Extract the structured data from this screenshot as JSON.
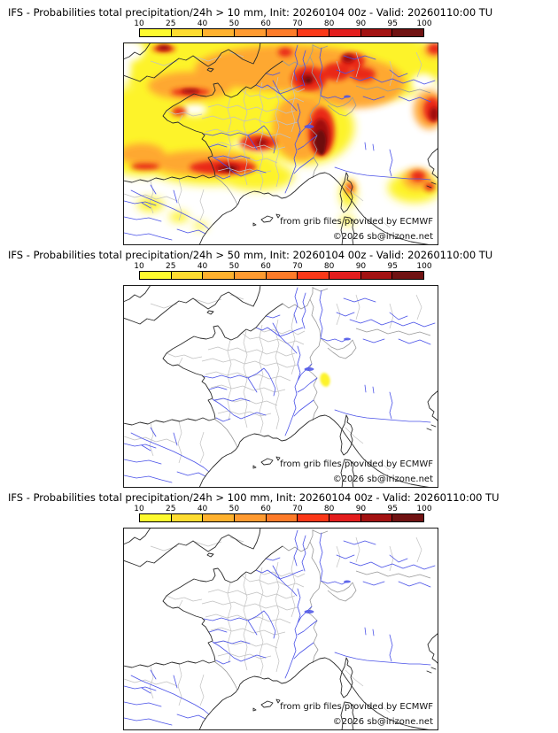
{
  "panels": [
    {
      "id": "precip-gt-10mm",
      "title": "IFS - Probabilities total precipitation/24h > 10 mm, Init: 20260104 00z - Valid: 20260110:00 TU",
      "attribution": "from grib files provided by ECMWF",
      "copyright": "©2026 sb@irizone.net"
    },
    {
      "id": "precip-gt-50mm",
      "title": "IFS - Probabilities total precipitation/24h > 50 mm, Init: 20260104 00z - Valid: 20260110:00 TU",
      "attribution": "from grib files provided by ECMWF",
      "copyright": "©2026 sb@irizone.net"
    },
    {
      "id": "precip-gt-100mm",
      "title": "IFS - Probabilities total precipitation/24h > 100 mm, Init: 20260104 00z - Valid: 20260110:00 TU",
      "attribution": "from grib files provided by ECMWF",
      "copyright": "©2026 sb@irizone.net"
    }
  ],
  "colorbar": {
    "tick_labels": [
      "10",
      "25",
      "40",
      "50",
      "60",
      "70",
      "80",
      "90",
      "95",
      "100"
    ],
    "segment_colors": [
      "#fdfa2e",
      "#fedc30",
      "#ffb12e",
      "#ff9a30",
      "#fe7b29",
      "#fb3818",
      "#e31d1d",
      "#a31212",
      "#701212"
    ],
    "unit": "%"
  },
  "map_style": {
    "coast_color": "#2b2b2b",
    "national_border_color": "#9a9a9a",
    "department_border_color": "#c2c2c2",
    "river_color": "#4a52e8",
    "sea_color": "#ffffff",
    "overlay_colors": {
      "yellow": "#fdf32b",
      "orange": "#ffa432",
      "red": "#e82418",
      "dark_red": "#a01010",
      "maroon": "#6e0f0f"
    }
  }
}
